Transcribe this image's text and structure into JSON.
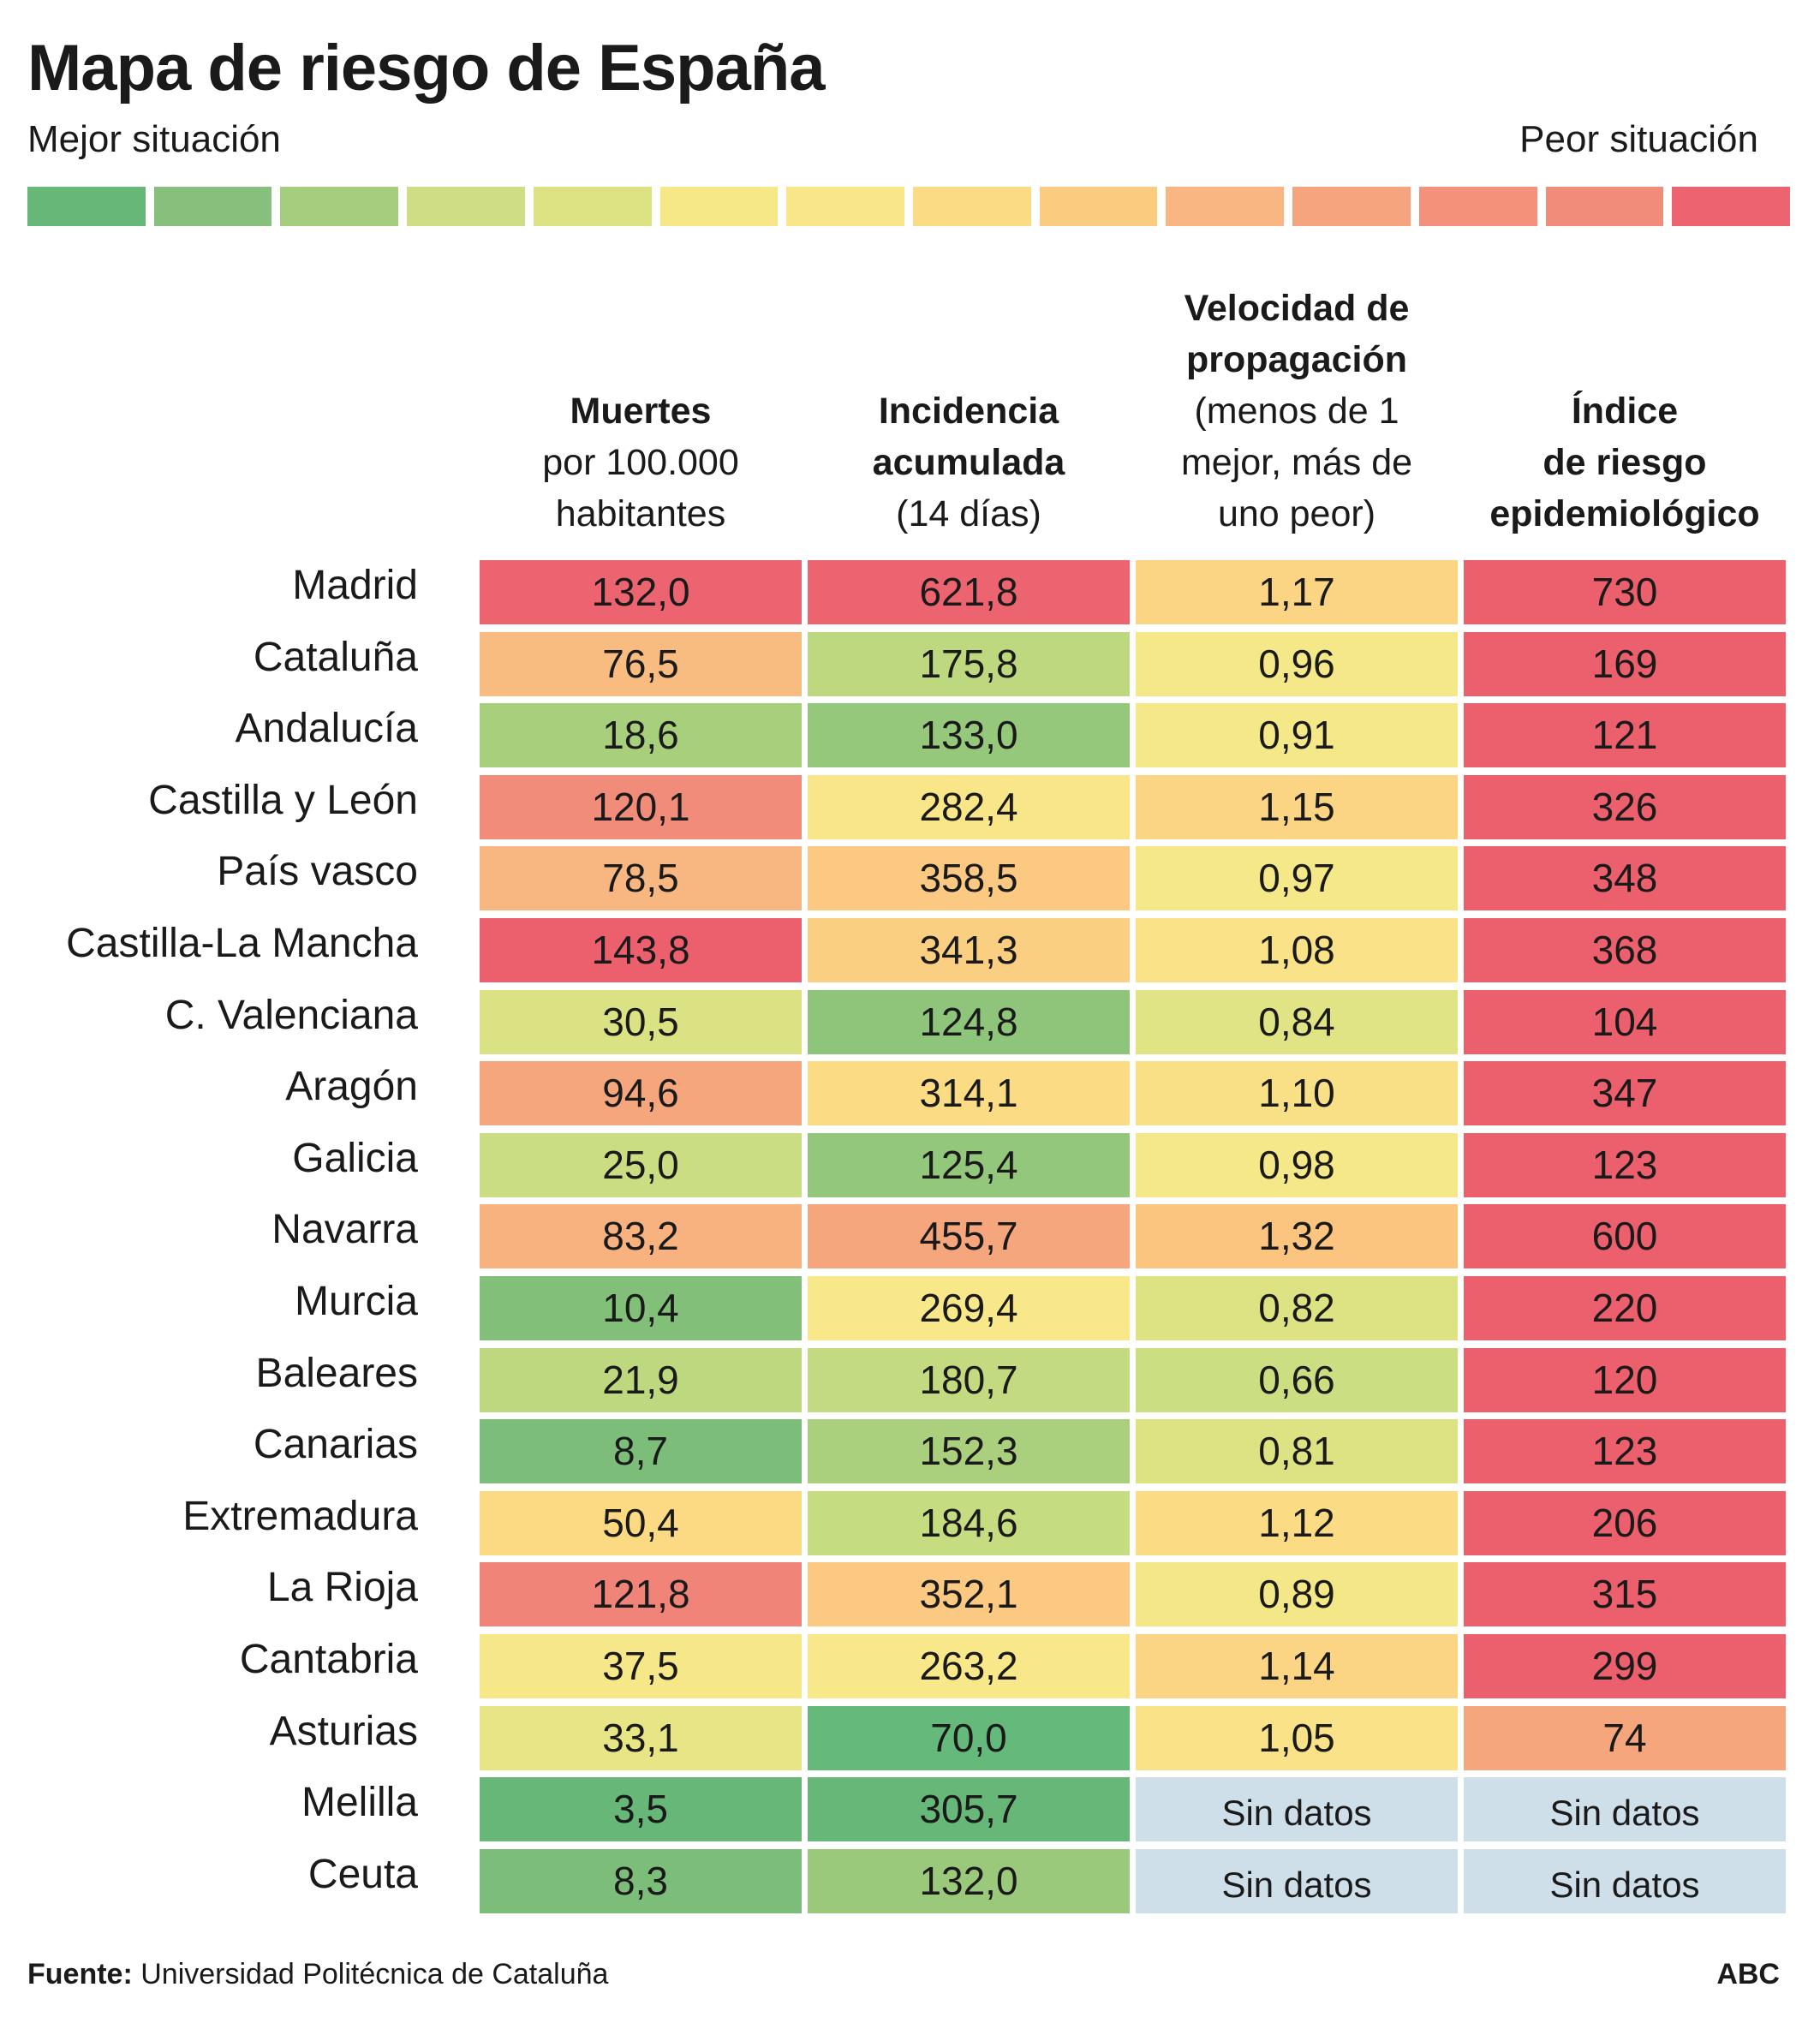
{
  "title": "Mapa de riesgo de España",
  "legend": {
    "better": "Mejor situación",
    "worse": "Peor situación",
    "scale_colors": [
      "#67b878",
      "#86c07c",
      "#a4cd7e",
      "#cfdd85",
      "#dde283",
      "#f6e887",
      "#f9e688",
      "#fbdb83",
      "#fbcb80",
      "#f9b582",
      "#f5a47d",
      "#f3917a",
      "#f18c7a",
      "#ec6470"
    ]
  },
  "nodata_color": "#cfdfe9",
  "chart_data": {
    "type": "table",
    "columns": [
      {
        "title": "Muertes",
        "subtitle_lines": [
          "por 100.000",
          "habitantes"
        ],
        "bold_lines": [
          "Muertes"
        ]
      },
      {
        "title": "Incidencia acumulada",
        "subtitle_lines": [
          "(14 días)"
        ],
        "bold_lines": [
          "Incidencia",
          "acumulada"
        ]
      },
      {
        "title": "Velocidad de propagación",
        "subtitle_lines": [
          "(menos de 1",
          "mejor, más de",
          "uno peor)"
        ],
        "bold_lines": [
          "Velocidad de",
          "propagación"
        ]
      },
      {
        "title": "Índice de riesgo epidemiológico",
        "subtitle_lines": [],
        "bold_lines": [
          "Índice",
          "de riesgo",
          "epidemiológico"
        ]
      }
    ],
    "rows": [
      {
        "region": "Madrid",
        "values": [
          "132,0",
          "621,8",
          "1,17",
          "730"
        ],
        "colors": [
          "#ec6470",
          "#ec6470",
          "#fbd583",
          "#ec5f6c"
        ]
      },
      {
        "region": "Cataluña",
        "values": [
          "76,5",
          "175,8",
          "0,96",
          "169"
        ],
        "colors": [
          "#f8bb80",
          "#bed87f",
          "#f5e888",
          "#ec5f6c"
        ]
      },
      {
        "region": "Andalucía",
        "values": [
          "18,6",
          "133,0",
          "0,91",
          "121"
        ],
        "colors": [
          "#a7cf7c",
          "#96c87c",
          "#f5e888",
          "#ec5f6c"
        ]
      },
      {
        "region": "Castilla y León",
        "values": [
          "120,1",
          "282,4",
          "1,15",
          "326"
        ],
        "colors": [
          "#f18c7a",
          "#f8e689",
          "#fbd583",
          "#ec5f6c"
        ]
      },
      {
        "region": "País vasco",
        "values": [
          "78,5",
          "358,5",
          "0,97",
          "348"
        ],
        "colors": [
          "#f8b780",
          "#fbc982",
          "#f5e888",
          "#ec5f6c"
        ]
      },
      {
        "region": "Castilla-La Mancha",
        "values": [
          "143,8",
          "341,3",
          "1,08",
          "368"
        ],
        "colors": [
          "#ec5f6c",
          "#fbcf81",
          "#f9e287",
          "#ec5f6c"
        ]
      },
      {
        "region": "C. Valenciana",
        "values": [
          "30,5",
          "124,8",
          "0,84",
          "104"
        ],
        "colors": [
          "#dbe283",
          "#8ec57b",
          "#e1e484",
          "#ec5f6c"
        ]
      },
      {
        "region": "Aragón",
        "values": [
          "94,6",
          "314,1",
          "1,10",
          "347"
        ],
        "colors": [
          "#f5a67d",
          "#fbdb83",
          "#f9e087",
          "#ec5f6c"
        ]
      },
      {
        "region": "Galicia",
        "values": [
          "25,0",
          "125,4",
          "0,98",
          "123"
        ],
        "colors": [
          "#cadd82",
          "#93c77c",
          "#f5e888",
          "#ec5f6c"
        ]
      },
      {
        "region": "Navarra",
        "values": [
          "83,2",
          "455,7",
          "1,32",
          "600"
        ],
        "colors": [
          "#f7b27f",
          "#f5a67d",
          "#fbc57f",
          "#ec5f6c"
        ]
      },
      {
        "region": "Murcia",
        "values": [
          "10,4",
          "269,4",
          "0,82",
          "220"
        ],
        "colors": [
          "#82c079",
          "#f8e889",
          "#dde383",
          "#ec5f6c"
        ]
      },
      {
        "region": "Baleares",
        "values": [
          "21,9",
          "180,7",
          "0,66",
          "120"
        ],
        "colors": [
          "#bdd87f",
          "#c3da80",
          "#cbde82",
          "#ec5f6c"
        ]
      },
      {
        "region": "Canarias",
        "values": [
          "8,7",
          "152,3",
          "0,81",
          "123"
        ],
        "colors": [
          "#7cbe79",
          "#abd07d",
          "#dde383",
          "#ec5f6c"
        ]
      },
      {
        "region": "Extremadura",
        "values": [
          "50,4",
          "184,6",
          "1,12",
          "206"
        ],
        "colors": [
          "#fbda83",
          "#c6dc81",
          "#fbdb83",
          "#ec5f6c"
        ]
      },
      {
        "region": "La Rioja",
        "values": [
          "121,8",
          "352,1",
          "0,89",
          "315"
        ],
        "colors": [
          "#f08478",
          "#fbc982",
          "#f3e787",
          "#ec5f6c"
        ]
      },
      {
        "region": "Cantabria",
        "values": [
          "37,5",
          "263,2",
          "1,14",
          "299"
        ],
        "colors": [
          "#f6e788",
          "#f8e889",
          "#fbd583",
          "#ec5f6c"
        ]
      },
      {
        "region": "Asturias",
        "values": [
          "33,1",
          "70,0",
          "1,05",
          "74"
        ],
        "colors": [
          "#e7e585",
          "#65b97a",
          "#f9e287",
          "#f5a67d"
        ]
      },
      {
        "region": "Melilla",
        "values": [
          "3,5",
          "305,7",
          "Sin datos",
          "Sin datos"
        ],
        "colors": [
          "#67b878",
          "#67b878",
          "#cfdfe9",
          "#cfdfe9"
        ]
      },
      {
        "region": "Ceuta",
        "values": [
          "8,3",
          "132,0",
          "Sin datos",
          "Sin datos"
        ],
        "colors": [
          "#7cbe79",
          "#9bc97c",
          "#cfdfe9",
          "#cfdfe9"
        ]
      }
    ]
  },
  "footer": {
    "source_label": "Fuente:",
    "source_text": "Universidad Politécnica de Cataluña",
    "brand": "ABC"
  }
}
